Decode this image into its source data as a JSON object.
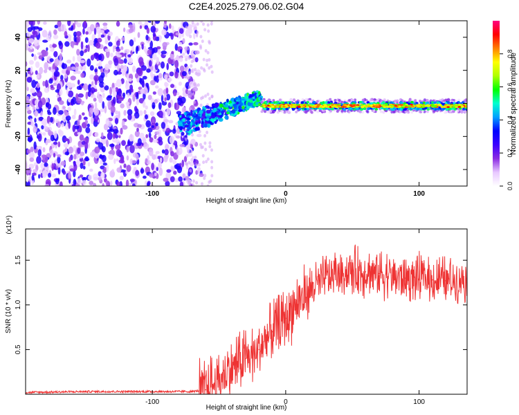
{
  "title": "C2E4.2025.279.06.02.G04",
  "chart_data": [
    {
      "type": "heatmap",
      "title": "C2E4.2025.279.06.02.G04",
      "xlabel": "Height of straight line (km)",
      "ylabel": "Frequency (Hz)",
      "xlim": [
        -195,
        136
      ],
      "ylim": [
        -50,
        50
      ],
      "xticks": [
        -100,
        0,
        100
      ],
      "yticks": [
        -40,
        -20,
        0,
        20,
        40
      ],
      "colorbar": {
        "label": "Normalized spectral amplitude",
        "range": [
          0,
          1
        ],
        "ticks": [
          "0.0",
          "0.2",
          "0.4",
          "0.6",
          "0.8"
        ],
        "tick_values": [
          0.0,
          0.2,
          0.4,
          0.6,
          0.8
        ],
        "colors": [
          "#ffffff",
          "#e8c8ff",
          "#8a2be2",
          "#3b00ff",
          "#0000ff",
          "#00a0ff",
          "#00ffd0",
          "#00ff00",
          "#b0ff00",
          "#ffff00",
          "#ff8000",
          "#ff0000",
          "#ff0080"
        ]
      },
      "regions": [
        {
          "name": "broadband noise",
          "x_range": [
            -195,
            -62
          ],
          "freq_range": [
            -50,
            50
          ],
          "amplitude": 0.15
        },
        {
          "name": "rising trace",
          "x_range": [
            -80,
            -18
          ],
          "freq_start": -14,
          "freq_end": 4,
          "amplitude": 0.45
        },
        {
          "name": "stable carrier",
          "x_range": [
            -18,
            136
          ],
          "freq": -1.5,
          "amplitude": 0.9
        }
      ]
    },
    {
      "type": "line",
      "xlabel": "Height of straight line (km)",
      "ylabel": "SNR (10 * v/v)",
      "y_scale_label": "(x10⁴)",
      "xlim": [
        -195,
        136
      ],
      "ylim": [
        0,
        1.85
      ],
      "xticks": [
        -100,
        0,
        100
      ],
      "yticks": [
        0.5,
        1.0,
        1.5
      ],
      "ytick_labels": [
        "0.5",
        "1.0",
        "1.5"
      ],
      "color": "#ee3333",
      "series": [
        {
          "name": "SNR",
          "x": [
            -195,
            -150,
            -100,
            -70,
            -60,
            -50,
            -40,
            -30,
            -20,
            -10,
            0,
            10,
            20,
            30,
            40,
            50,
            60,
            70,
            80,
            90,
            100,
            110,
            120,
            136
          ],
          "values": [
            0.02,
            0.03,
            0.03,
            0.03,
            0.05,
            0.15,
            0.3,
            0.4,
            0.5,
            0.7,
            0.85,
            1.05,
            1.2,
            1.3,
            1.35,
            1.38,
            1.37,
            1.35,
            1.33,
            1.3,
            1.3,
            1.28,
            1.27,
            1.3
          ]
        }
      ]
    }
  ]
}
